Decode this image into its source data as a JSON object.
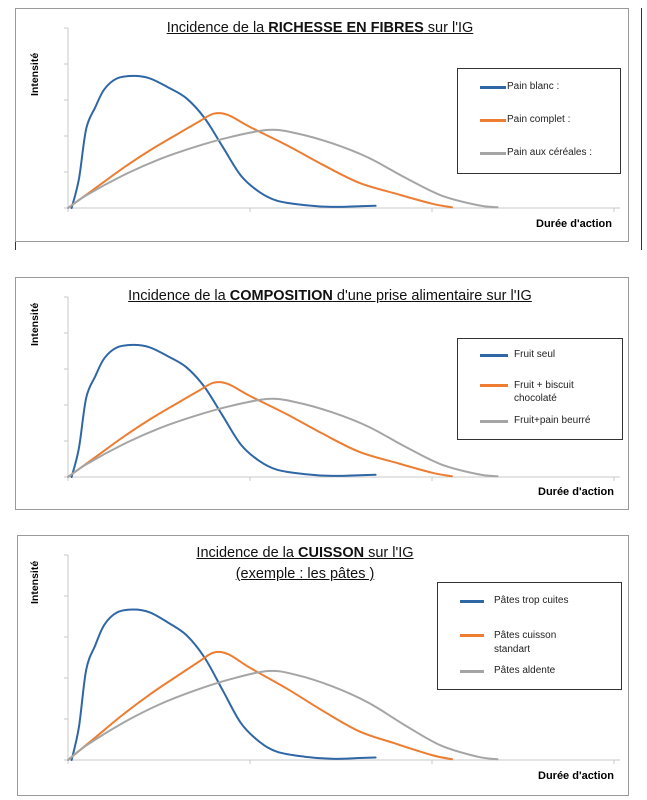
{
  "chart_data": [
    {
      "type": "line",
      "title": {
        "prefix": "Incidence de la ",
        "bold": "RICHESSE EN FIBRES",
        "suffix": " sur l'IG",
        "line2": ""
      },
      "xlabel": "Durée d'action",
      "ylabel": "Intensité",
      "xlim": [
        0,
        3
      ],
      "ylim": [
        0,
        5
      ],
      "grid": false,
      "legend_position": "right",
      "series": [
        {
          "name": "Pain blanc :",
          "color": "#2f67a6"
        },
        {
          "name": "Pain complet :",
          "color": "#ed7d31"
        },
        {
          "name": "Pain aux céréales :",
          "color": "#a5a5a5"
        }
      ]
    },
    {
      "type": "line",
      "title": {
        "prefix": "Incidence de la ",
        "bold": "COMPOSITION",
        "suffix": " d'une prise alimentaire sur l'IG",
        "line2": ""
      },
      "xlabel": "Durée d'action",
      "ylabel": "Intensité",
      "xlim": [
        0,
        3
      ],
      "ylim": [
        0,
        5
      ],
      "grid": false,
      "legend_position": "right",
      "series": [
        {
          "name": "Fruit seul",
          "color": "#2f67a6"
        },
        {
          "name": "Fruit + biscuit chocolaté",
          "color": "#ed7d31"
        },
        {
          "name": "Fruit+pain beurré",
          "color": "#a5a5a5"
        }
      ]
    },
    {
      "type": "line",
      "title": {
        "prefix": "Incidence de la ",
        "bold": "CUISSON",
        "suffix": " sur l'IG",
        "line2": "(exemple : les pâtes )"
      },
      "xlabel": "Durée d'action",
      "ylabel": "Intensité",
      "xlim": [
        0,
        3
      ],
      "ylim": [
        0,
        5
      ],
      "grid": false,
      "legend_position": "right",
      "series": [
        {
          "name": "Pâtes trop cuites",
          "color": "#2f67a6"
        },
        {
          "name": "Pâtes cuisson standart",
          "color": "#ed7d31"
        },
        {
          "name": "Pâtes aldente",
          "color": "#a5a5a5"
        }
      ]
    }
  ],
  "curves": [
    {
      "x": [
        0.02,
        0.06,
        0.1,
        0.15,
        0.2,
        0.27,
        0.36,
        0.45,
        0.55,
        0.65,
        0.75,
        0.85,
        0.95,
        1.05,
        1.15,
        1.3,
        1.45,
        1.6,
        1.69
      ],
      "y": [
        0,
        0.8,
        2.2,
        2.8,
        3.3,
        3.6,
        3.67,
        3.6,
        3.35,
        3.05,
        2.5,
        1.7,
        0.9,
        0.45,
        0.2,
        0.08,
        0.03,
        0.05,
        0.06
      ]
    },
    {
      "x": [
        0,
        0.15,
        0.3,
        0.45,
        0.6,
        0.72,
        0.8,
        0.88,
        1.0,
        1.2,
        1.4,
        1.6,
        1.8,
        2.0,
        2.11
      ],
      "y": [
        0,
        0.55,
        1.1,
        1.6,
        2.05,
        2.4,
        2.62,
        2.58,
        2.25,
        1.75,
        1.2,
        0.7,
        0.4,
        0.12,
        0.02
      ]
    },
    {
      "x": [
        0,
        0.1,
        0.3,
        0.5,
        0.7,
        0.9,
        1.1,
        1.25,
        1.45,
        1.65,
        1.85,
        2.05,
        2.25,
        2.36
      ],
      "y": [
        0,
        0.35,
        0.9,
        1.35,
        1.7,
        1.98,
        2.17,
        2.08,
        1.8,
        1.4,
        0.85,
        0.35,
        0.08,
        0.02
      ]
    }
  ]
}
